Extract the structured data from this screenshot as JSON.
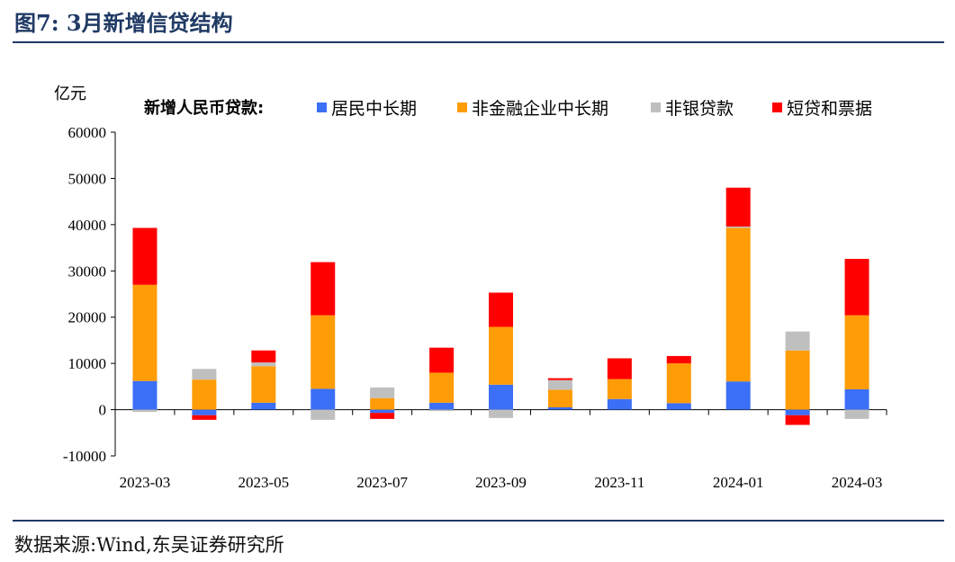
{
  "header": {
    "title": "图7:  3月新增信贷结构"
  },
  "footer": {
    "source": "数据来源:Wind,东吴证券研究所"
  },
  "chart_data": {
    "type": "bar",
    "stacked": true,
    "unit_label": "亿元",
    "legend_title": "新增人民币贷款:",
    "categories": [
      "2023-03",
      "2023-04",
      "2023-05",
      "2023-06",
      "2023-07",
      "2023-08",
      "2023-09",
      "2023-10",
      "2023-11",
      "2023-12",
      "2024-01",
      "2024-02",
      "2024-03"
    ],
    "x_tick_labels": [
      "2023-03",
      "2023-05",
      "2023-07",
      "2023-09",
      "2023-11",
      "2024-01",
      "2024-03"
    ],
    "x_tick_indices": [
      0,
      2,
      4,
      6,
      8,
      10,
      12
    ],
    "y_ticks": [
      -10000,
      0,
      10000,
      20000,
      30000,
      40000,
      50000,
      60000
    ],
    "ylim": [
      -10000,
      60000
    ],
    "grid": false,
    "legend_position": "top",
    "series": [
      {
        "name": "居民中长期",
        "color": "#3b6ff5",
        "values": [
          6200,
          -1200,
          1500,
          4500,
          -700,
          1500,
          5400,
          500,
          2300,
          1400,
          6100,
          -1200,
          4400
        ]
      },
      {
        "name": "非金融企业中长期",
        "color": "#ff9c06",
        "values": [
          20800,
          6500,
          7900,
          15900,
          2500,
          6500,
          12500,
          3800,
          4300,
          8600,
          33200,
          12800,
          16000
        ]
      },
      {
        "name": "非银贷款",
        "color": "#bfbfbf",
        "values": [
          -500,
          2300,
          800,
          -2200,
          2300,
          -300,
          -1800,
          2100,
          0,
          0,
          300,
          4100,
          -2000
        ]
      },
      {
        "name": "短贷和票据",
        "color": "#ff0000",
        "values": [
          12300,
          -1000,
          2600,
          11500,
          -1300,
          5400,
          7400,
          400,
          4500,
          1600,
          8400,
          -2100,
          12200
        ]
      }
    ]
  }
}
